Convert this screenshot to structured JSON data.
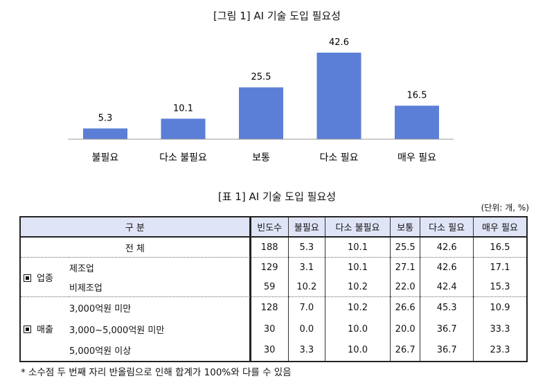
{
  "figure_title": "[그림 1] AI 기술 도입 필요성",
  "chart_data": {
    "type": "bar",
    "title": "[그림 1] AI 기술 도입 필요성",
    "categories": [
      "불필요",
      "다소 불필요",
      "보통",
      "다소 필요",
      "매우 필요"
    ],
    "values": [
      5.3,
      10.1,
      25.5,
      42.6,
      16.5
    ],
    "data_labels": [
      "5.3",
      "10.1",
      "25.5",
      "42.6",
      "16.5"
    ],
    "bar_color": "#5b7fd6",
    "ylim": [
      0,
      45
    ],
    "grid": false,
    "legend": "none"
  },
  "table": {
    "title": "[표 1] AI 기술 도입 필요성",
    "unit": "(단위: 개, %)",
    "headers": [
      "구  분",
      "빈도수",
      "불필요",
      "다소 불필요",
      "보통",
      "다소 필요",
      "매우 필요"
    ],
    "header_color": "#dfe4f6",
    "groups": [
      {
        "category": "",
        "rows": [
          {
            "label": "전  체",
            "values": [
              "188",
              "5.3",
              "10.1",
              "25.5",
              "42.6",
              "16.5"
            ]
          }
        ]
      },
      {
        "category": "업종",
        "rows": [
          {
            "label": "제조업",
            "values": [
              "129",
              "3.1",
              "10.1",
              "27.1",
              "42.6",
              "17.1"
            ]
          },
          {
            "label": "비제조업",
            "values": [
              "59",
              "10.2",
              "10.2",
              "22.0",
              "42.4",
              "15.3"
            ]
          }
        ]
      },
      {
        "category": "매출",
        "rows": [
          {
            "label": "3,000억원 미만",
            "values": [
              "128",
              "7.0",
              "10.2",
              "26.6",
              "45.3",
              "10.9"
            ]
          },
          {
            "label": "3,000~5,000억원 미만",
            "values": [
              "30",
              "0.0",
              "10.0",
              "20.0",
              "36.7",
              "33.3"
            ]
          },
          {
            "label": "5,000억원 이상",
            "values": [
              "30",
              "3.3",
              "10.0",
              "26.7",
              "36.7",
              "23.3"
            ]
          }
        ]
      }
    ]
  },
  "footnote": "* 소수점 두 번째 자리 반올림으로 인해 합계가 100%와 다를 수 있음"
}
